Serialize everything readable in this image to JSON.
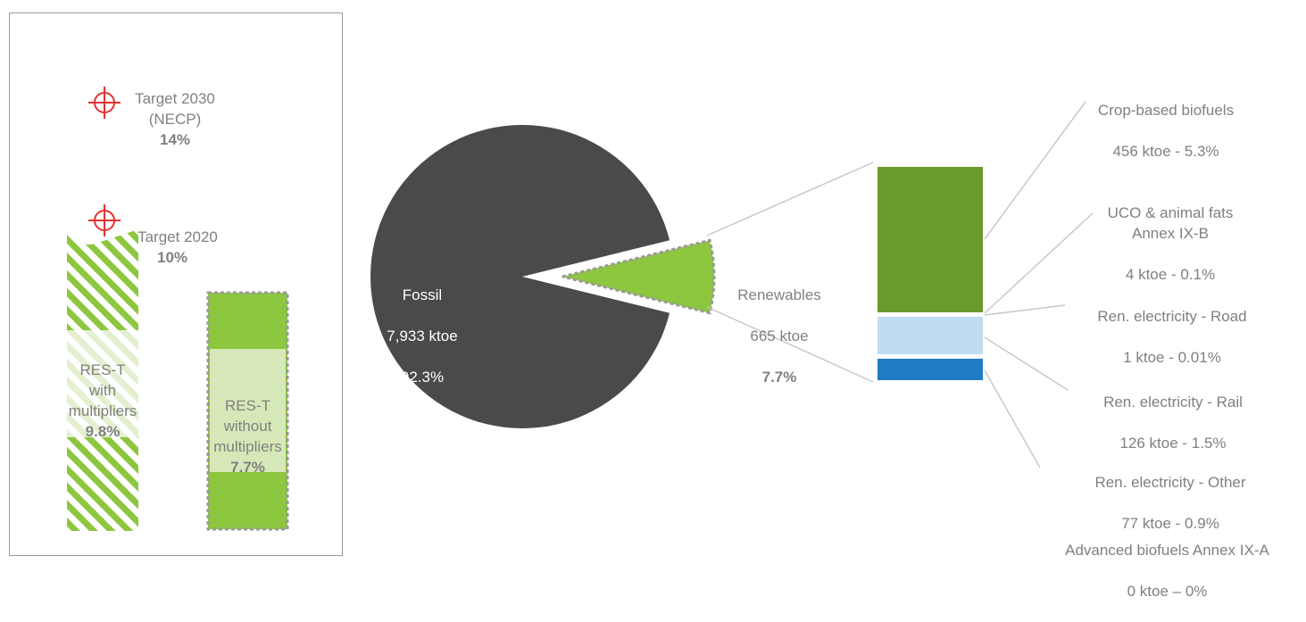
{
  "colors": {
    "fossil": "#4a4a4c",
    "renewables": "#8dc63f",
    "hatch": "#8dc63f",
    "light_green": "#d6e8b8",
    "crop_biofuels": "#6a9a2c",
    "ren_elec_road": "#bfdcf0",
    "ren_elec_rail": "#1f7cc2",
    "target_icon": "#e3312f",
    "text": "#808080"
  },
  "icons": [
    "crosshair-target-icon",
    "crosshair-target-icon"
  ],
  "left_panel": {
    "target_2030": {
      "label": "Target 2030\n(NECP)",
      "value": "14%"
    },
    "target_2020": {
      "label": "Target 2020",
      "value": "10%"
    },
    "bar_with": {
      "label": "RES-T\nwith\nmultipliers",
      "value": "9.8%"
    },
    "bar_without": {
      "label": "RES-T\nwithout\nmultipliers",
      "value": "7.7%"
    }
  },
  "chart_data": [
    {
      "type": "bar",
      "categories": [
        "RES-T with multipliers",
        "RES-T without multipliers"
      ],
      "values": [
        9.8,
        7.7
      ],
      "targets": [
        {
          "label": "Target 2020",
          "value": 10
        },
        {
          "label": "Target 2030 (NECP)",
          "value": 14
        }
      ],
      "unit": "%"
    },
    {
      "type": "pie",
      "slices": [
        {
          "label": "Fossil",
          "value_text": "7,933 ktoe",
          "percent_text": "92.3%",
          "value": 7933,
          "percent": 92.3
        },
        {
          "label": "Renewables",
          "value_text": "665 ktoe",
          "percent_text": "7.7%",
          "value": 665,
          "percent": 7.7,
          "exploded": true
        }
      ]
    },
    {
      "type": "bar",
      "stacked": true,
      "segments": [
        {
          "label": "Crop-based biofuels",
          "value_text": "456 ktoe - 5.3%",
          "value": 456,
          "percent": 5.3
        },
        {
          "label": "UCO & animal fats\nAnnex IX-B",
          "value_text": "4 ktoe  - 0.1%",
          "value": 4,
          "percent": 0.1
        },
        {
          "label": "Ren. electricity - Road",
          "value_text": "1 ktoe - 0.01%",
          "value": 1,
          "percent": 0.01
        },
        {
          "label": "Ren. electricity - Rail",
          "value_text": "126 ktoe  - 1.5%",
          "value": 126,
          "percent": 1.5
        },
        {
          "label": "Ren. electricity - Other",
          "value_text": "77 ktoe - 0.9%",
          "value": 77,
          "percent": 0.9
        },
        {
          "label": "Advanced biofuels Annex IX-A",
          "value_text": "0 ktoe – 0%",
          "value": 0,
          "percent": 0
        }
      ]
    }
  ]
}
